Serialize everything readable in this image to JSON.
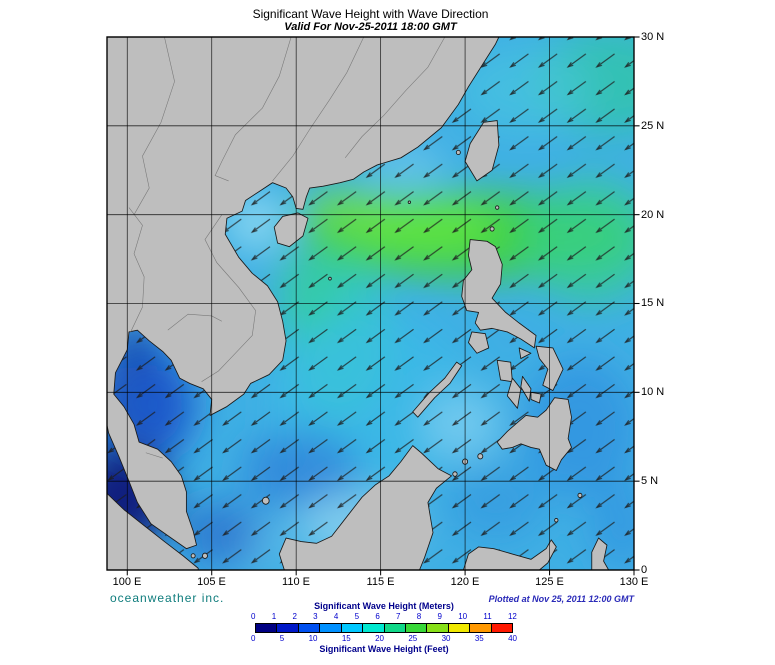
{
  "header": {
    "title": "Significant Wave Height with Wave Direction",
    "subtitle": "Valid For Nov-25-2011 18:00 GMT"
  },
  "axes": {
    "lon": [
      "100 E",
      "105 E",
      "110 E",
      "115 E",
      "120 E",
      "125 E",
      "130 E"
    ],
    "lat": [
      "30 N",
      "25 N",
      "20 N",
      "15 N",
      "10 N",
      "5 N",
      "0"
    ]
  },
  "footer": {
    "brand": "oceanweather inc.",
    "plotted": "Plotted at Nov 25, 2011 12:00 GMT"
  },
  "legend": {
    "meters_label": "Significant Wave Height (Meters)",
    "feet_label": "Significant Wave Height (Feet)",
    "meters_ticks": [
      0,
      1,
      2,
      3,
      4,
      5,
      6,
      7,
      8,
      9,
      10,
      11,
      12
    ],
    "feet_ticks": [
      0,
      5,
      10,
      15,
      20,
      25,
      30,
      35,
      40
    ],
    "colors": [
      "#000082",
      "#0018c8",
      "#0050f0",
      "#0090ff",
      "#00c8ff",
      "#00e8d0",
      "#10d888",
      "#38d838",
      "#88e018",
      "#f0e800",
      "#ff9800",
      "#ff1800"
    ]
  },
  "chart_data": {
    "type": "heatmap",
    "title": "Significant Wave Height with Wave Direction",
    "valid_time": "Nov-25-2011 18:00 GMT",
    "plotted_time": "Nov 25, 2011 12:00 GMT",
    "x_ticks": [
      "100 E",
      "105 E",
      "110 E",
      "115 E",
      "120 E",
      "125 E",
      "130 E"
    ],
    "y_ticks": [
      "0",
      "5 N",
      "10 N",
      "15 N",
      "20 N",
      "25 N",
      "30 N"
    ],
    "colorbar_meters_range": [
      0,
      12
    ],
    "colorbar_feet_range": [
      0,
      40
    ],
    "depicted": "Significant wave height field over the South China Sea and western Pacific; highest band (green, ~4-6 m) stretches east-west near 17-20 N through the Luzon Strait; lowest (dark navy, <1 m) in the Malacca Strait and Gulf of Thailand; arrows indicate wave direction toward the southwest"
  }
}
